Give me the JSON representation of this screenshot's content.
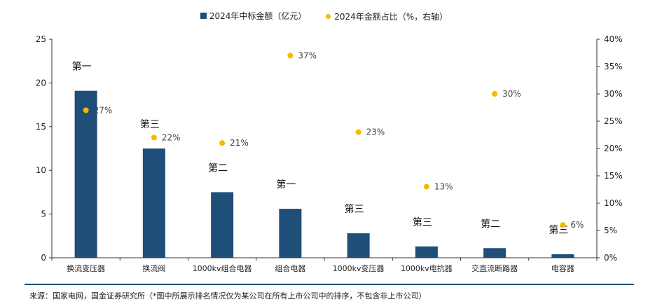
{
  "legend": {
    "bar_label": "2024年中标金额（亿元）",
    "dot_label": "2024年金额占比（%，右轴）"
  },
  "source": "来源：国家电网，国金证券研究所（*图中所展示排名情况仅为某公司在所有上市公司中的排序，不包含非上市公司）",
  "colors": {
    "bar": "#1F4E79",
    "dot": "#F5B800",
    "axis": "#333333"
  },
  "chart_data": {
    "type": "bar",
    "categories": [
      "换流变压器",
      "换流阀",
      "1000kv组合电器",
      "组合电器",
      "1000kv变压器",
      "1000kv电抗器",
      "交直流断路器",
      "电容器"
    ],
    "series": [
      {
        "name": "2024年中标金额（亿元）",
        "type": "bar",
        "axis": "left",
        "values": [
          19.1,
          12.5,
          7.5,
          5.6,
          2.8,
          1.3,
          1.1,
          0.4
        ]
      },
      {
        "name": "2024年金额占比（%，右轴）",
        "type": "scatter",
        "axis": "right",
        "values": [
          27,
          22,
          21,
          37,
          23,
          13,
          30,
          6
        ],
        "labels": [
          "27%",
          "22%",
          "21%",
          "37%",
          "23%",
          "13%",
          "30%",
          "6%"
        ]
      }
    ],
    "rank_labels": [
      "第一",
      "第三",
      "第二",
      "第一",
      "第三",
      "第三",
      "第二",
      "第三"
    ],
    "y_left": {
      "min": 0,
      "max": 25,
      "ticks": [
        "0",
        "5",
        "10",
        "15",
        "20",
        "25"
      ]
    },
    "y_right": {
      "min": 0,
      "max": 40,
      "ticks": [
        "0%",
        "5%",
        "10%",
        "15%",
        "20%",
        "25%",
        "30%",
        "35%",
        "40%"
      ]
    },
    "grid": false
  }
}
